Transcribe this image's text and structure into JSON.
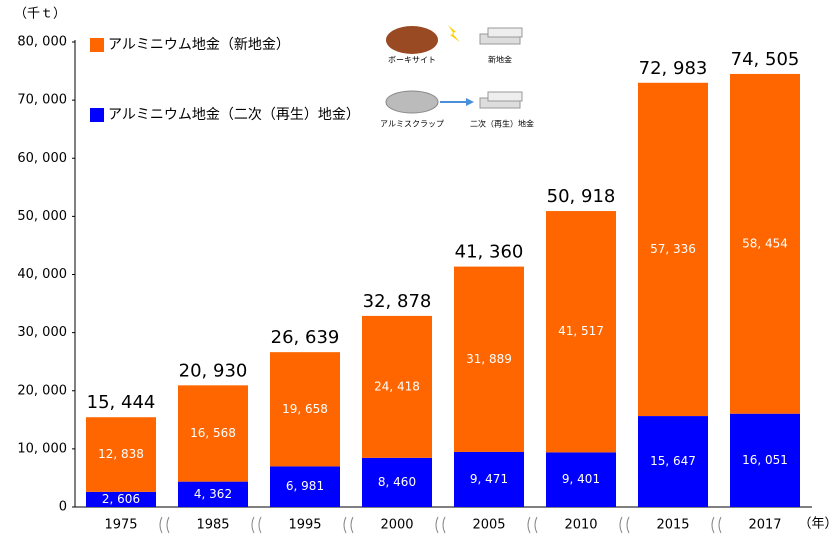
{
  "chart_data": {
    "type": "stacked_bar",
    "y_axis_label": "（千ｔ）",
    "x_axis_label": "（年）",
    "categories": [
      "1975",
      "1985",
      "1995",
      "2000",
      "2005",
      "2010",
      "2015",
      "2017"
    ],
    "series": [
      {
        "name": "アルミニウム地金（二次（再生）地金）",
        "color": "#0000ff",
        "values": [
          2606,
          4362,
          6981,
          8460,
          9471,
          9401,
          15647,
          16051
        ],
        "value_labels": [
          "2, 606",
          "4, 362",
          "6, 981",
          "8, 460",
          "9, 471",
          "9, 401",
          "15, 647",
          "16, 051"
        ]
      },
      {
        "name": "アルミニウム地金（新地金）",
        "color": "#ff6600",
        "values": [
          12838,
          16568,
          19658,
          24418,
          31889,
          41517,
          57336,
          58454
        ],
        "value_labels": [
          "12, 838",
          "16, 568",
          "19, 658",
          "24, 418",
          "31, 889",
          "41, 517",
          "57, 336",
          "58, 454"
        ]
      }
    ],
    "totals": [
      15444,
      20930,
      26639,
      32878,
      41360,
      50918,
      72983,
      74505
    ],
    "total_labels": [
      "15, 444",
      "20, 930",
      "26, 639",
      "32, 878",
      "41, 360",
      "50, 918",
      "72, 983",
      "74, 505"
    ],
    "ylim": [
      0,
      80000
    ],
    "yticks": [
      0,
      {
        "value": 10000,
        "label": "10, 000"
      },
      {
        "value": 20000,
        "label": "20, 000"
      },
      {
        "value": 30000,
        "label": "30, 000"
      },
      {
        "value": 40000,
        "label": "40, 000"
      },
      {
        "value": 50000,
        "label": "50, 000"
      },
      {
        "value": 60000,
        "label": "60, 000"
      },
      {
        "value": 70000,
        "label": "70, 000"
      },
      {
        "value": 80000,
        "label": "80, 000"
      }
    ],
    "illustration_labels": {
      "bauxite": "ボーキサイト",
      "new_ingot": "新地金",
      "scrap": "アルミスクラップ",
      "secondary_ingot": "二次（再生）地金"
    }
  }
}
